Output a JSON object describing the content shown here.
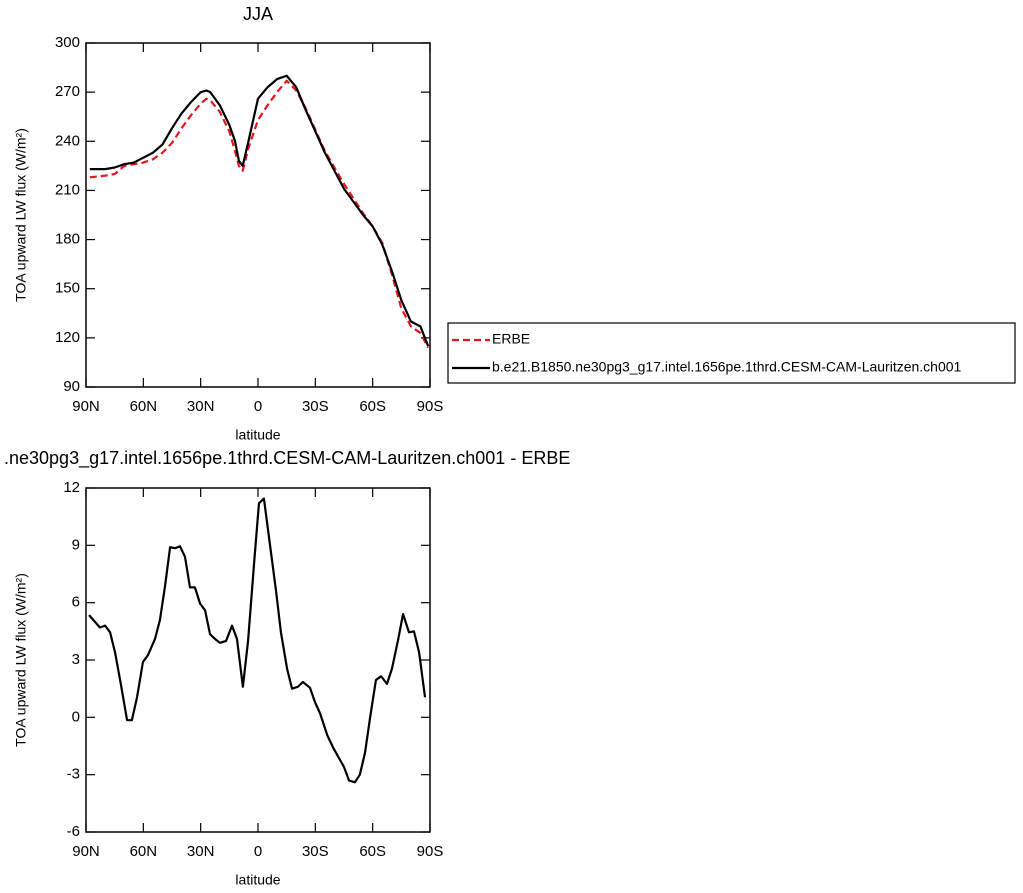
{
  "chart_data": [
    {
      "type": "line",
      "title": "JJA",
      "xlabel": "latitude",
      "ylabel": "TOA upward LW flux (W/m²)",
      "x": [
        88,
        80,
        75,
        70,
        65,
        60,
        55,
        50,
        45,
        40,
        35,
        30,
        27,
        25,
        20,
        15,
        12,
        10,
        8,
        5,
        0,
        -5,
        -10,
        -15,
        -20,
        -25,
        -30,
        -35,
        -40,
        -45,
        -50,
        -55,
        -60,
        -65,
        -70,
        -75,
        -80,
        -85,
        -89
      ],
      "series": [
        {
          "name": "ERBE",
          "color": "#e8141b",
          "line_style": "dashed",
          "values": [
            218,
            219,
            220,
            225,
            226,
            227,
            229,
            233,
            239,
            248,
            256,
            263,
            266,
            265,
            258,
            246,
            234,
            225,
            222,
            236,
            253,
            262,
            270,
            277,
            271,
            260,
            247,
            234,
            224,
            214,
            205,
            196,
            188,
            178,
            159,
            138,
            127,
            123,
            114
          ]
        },
        {
          "name": "b.e21.B1850.ne30pg3_g17.intel.1656pe.1thrd.CESM-CAM-Lauritzen.ch001",
          "color": "#000000",
          "line_style": "solid",
          "values": [
            223,
            223,
            224,
            226,
            227,
            230,
            233,
            238,
            248,
            257,
            264,
            270,
            271,
            270,
            262,
            250,
            240,
            228,
            225,
            240,
            266,
            273,
            278,
            280,
            273,
            259,
            246,
            233,
            222,
            211,
            203,
            195,
            188,
            177,
            161,
            143,
            130,
            127,
            115
          ]
        }
      ],
      "xlim": [
        90,
        -90
      ],
      "xticks": [
        {
          "value": 90,
          "label": "90N"
        },
        {
          "value": 60,
          "label": "60N"
        },
        {
          "value": 30,
          "label": "30N"
        },
        0,
        {
          "value": -30,
          "label": "30S"
        },
        {
          "value": -60,
          "label": "60S"
        },
        {
          "value": -90,
          "label": "90S"
        }
      ],
      "ylim": [
        90,
        300
      ],
      "yticks": [
        90,
        120,
        150,
        180,
        210,
        240,
        270,
        300
      ],
      "legend": "right"
    },
    {
      "type": "line",
      "title": ".ne30pg3_g17.intel.1656pe.1thrd.CESM-CAM-Lauritzen.ch001 - ERBE",
      "xlabel": "latitude",
      "ylabel": "TOA upward LW flux (W/m²)",
      "x": [
        88.4,
        82.7,
        80,
        77.4,
        74.8,
        71.7,
        68.5,
        66,
        63.3,
        60.2,
        57.6,
        53.9,
        51.3,
        48.6,
        46,
        43.4,
        40.8,
        38.2,
        35.6,
        33,
        30.3,
        27.7,
        25.1,
        22.5,
        19.9,
        16.7,
        13.6,
        11,
        7.9,
        5.2,
        2.1,
        -0.5,
        -3.1,
        -6.3,
        -9.4,
        -12,
        -15.2,
        -17.8,
        -20.9,
        -23.5,
        -27.2,
        -29.8,
        -32.5,
        -36.3,
        -39.4,
        -41.9,
        -45,
        -47.6,
        -50.7,
        -53.3,
        -56,
        -58.6,
        -61.7,
        -64.4,
        -67.5,
        -70.1,
        -73.3,
        -75.9,
        -79,
        -81.6,
        -84.3,
        -87.4
      ],
      "series": [
        {
          "color": "#000000",
          "line_style": "solid",
          "values": [
            5.35,
            4.7,
            4.8,
            4.45,
            3.4,
            1.7,
            -0.15,
            -0.15,
            1.05,
            2.9,
            3.25,
            4.1,
            5.1,
            6.9,
            8.9,
            8.85,
            8.95,
            8.4,
            6.8,
            6.8,
            5.95,
            5.6,
            4.35,
            4.1,
            3.9,
            4.0,
            4.8,
            4.1,
            1.6,
            4.0,
            8.0,
            11.2,
            11.45,
            9.0,
            6.65,
            4.45,
            2.55,
            1.5,
            1.6,
            1.85,
            1.55,
            0.8,
            0.2,
            -0.95,
            -1.6,
            -2.05,
            -2.6,
            -3.3,
            -3.4,
            -3.0,
            -1.85,
            -0.05,
            1.95,
            2.15,
            1.75,
            2.55,
            4.05,
            5.4,
            4.45,
            4.5,
            3.4,
            1.05
          ]
        }
      ],
      "xlim": [
        90,
        -90
      ],
      "xticks": [
        {
          "value": 90,
          "label": "90N"
        },
        {
          "value": 60,
          "label": "60N"
        },
        {
          "value": 30,
          "label": "30N"
        },
        0,
        {
          "value": -30,
          "label": "30S"
        },
        {
          "value": -60,
          "label": "60S"
        },
        {
          "value": -90,
          "label": "90S"
        }
      ],
      "ylim": [
        -6,
        12
      ],
      "yticks": [
        -6,
        -3,
        0,
        3,
        6,
        9,
        12
      ]
    }
  ]
}
